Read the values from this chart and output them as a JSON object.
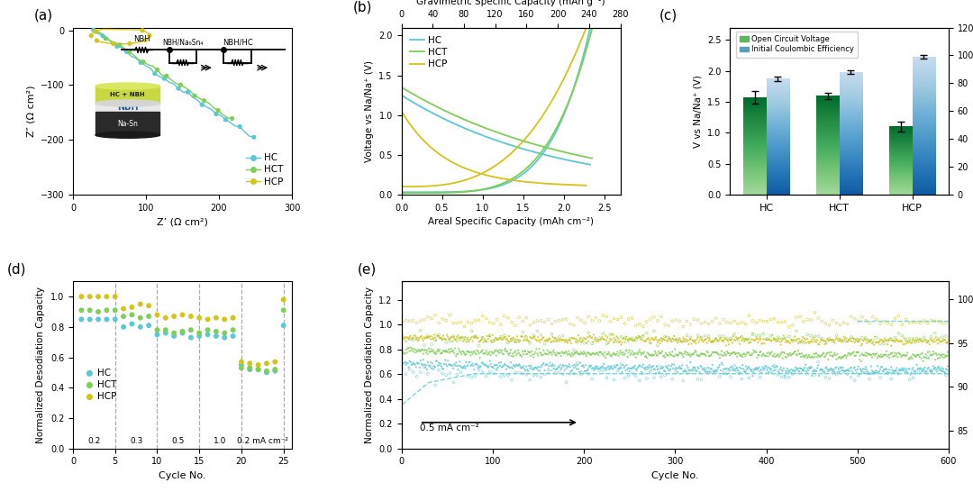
{
  "colors": {
    "HC": "#5bc8d5",
    "HCT": "#7ecf55",
    "HCP": "#d4c41a"
  },
  "panel_a": {
    "xlabel": "Z’ (Ω cm²)",
    "ylabel": "Z″ (Ω cm²)",
    "xlim": [
      0,
      300
    ],
    "ylim": [
      -300,
      0
    ],
    "yticks": [
      -300,
      -200,
      -100,
      0
    ],
    "xticks": [
      0,
      100,
      200,
      300
    ]
  },
  "panel_b": {
    "xlabel": "Areal Specific Capacity (mAh cm⁻²)",
    "ylabel": "Voltage vs Na/Na⁺ (V)",
    "xlabel2": "Gravimetric Specific Capacity (mAh g⁻¹)",
    "xlim": [
      0,
      2.7
    ],
    "ylim": [
      0,
      2.1
    ],
    "xlim2": [
      0,
      280
    ],
    "xticks": [
      0.0,
      0.5,
      1.0,
      1.5,
      2.0,
      2.5
    ],
    "xticks2": [
      0,
      40,
      80,
      120,
      160,
      200,
      240,
      280
    ]
  },
  "panel_c": {
    "ylabel_left": "V vs Na/Na⁺ (V)",
    "ylabel_right": "Initial Coulombic Efficiency (%)",
    "categories": [
      "HC",
      "HCT",
      "HCP"
    ],
    "ocv_values": [
      1.57,
      1.6,
      1.1
    ],
    "ocv_errors": [
      0.1,
      0.05,
      0.08
    ],
    "ice_values": [
      83,
      88,
      99
    ],
    "ice_errors": [
      1.5,
      1.5,
      1.5
    ],
    "ylim_left": [
      0,
      2.7
    ],
    "ylim_right": [
      0,
      120
    ],
    "yticks_left": [
      0.0,
      0.5,
      1.0,
      1.5,
      2.0,
      2.5
    ],
    "yticks_right": [
      0,
      20,
      40,
      60,
      80,
      100,
      120
    ],
    "bar_green": "#5cb85c",
    "bar_blue_top": "#4a90c4",
    "bar_blue_bot": "#aad4e8"
  },
  "panel_d": {
    "xlabel": "Cycle No.",
    "ylabel": "Normalized Desodiation Capacity",
    "xlim": [
      0,
      26
    ],
    "ylim": [
      0,
      1.1
    ],
    "vlines": [
      5,
      10,
      15,
      20,
      25
    ],
    "rate_labels": [
      "0.2",
      "0.3",
      "0.5",
      "1.0",
      "0.2 mA cm⁻²"
    ],
    "rate_x": [
      2.5,
      7.5,
      12.5,
      17.5,
      22.5
    ],
    "HC_vals": [
      0.85,
      0.85,
      0.85,
      0.85,
      0.85,
      0.8,
      0.82,
      0.8,
      0.81,
      0.75,
      0.76,
      0.74,
      0.76,
      0.73,
      0.74,
      0.75,
      0.74,
      0.73,
      0.74,
      0.55,
      0.52,
      0.52,
      0.5,
      0.51,
      0.81
    ],
    "HCT_vals": [
      0.91,
      0.91,
      0.9,
      0.91,
      0.91,
      0.87,
      0.88,
      0.86,
      0.87,
      0.78,
      0.78,
      0.76,
      0.77,
      0.78,
      0.76,
      0.78,
      0.77,
      0.76,
      0.78,
      0.53,
      0.53,
      0.52,
      0.51,
      0.52,
      0.91
    ],
    "HCP_vals": [
      1.0,
      1.0,
      1.0,
      1.0,
      1.0,
      0.92,
      0.93,
      0.95,
      0.94,
      0.88,
      0.86,
      0.87,
      0.88,
      0.87,
      0.86,
      0.85,
      0.86,
      0.85,
      0.86,
      0.57,
      0.56,
      0.55,
      0.56,
      0.57,
      0.98
    ]
  },
  "panel_e": {
    "xlabel": "Cycle No.",
    "ylabel": "Normalized Desodiation Capacity",
    "ylabel_right": "Efficiency (%)",
    "xlim": [
      0,
      600
    ],
    "ylim": [
      0.0,
      1.35
    ],
    "ylim_right": [
      83,
      102
    ],
    "yticks": [
      0.0,
      0.2,
      0.4,
      0.6,
      0.8,
      1.0,
      1.2
    ],
    "yticks_right": [
      85,
      90,
      95,
      100
    ],
    "annotation": "0.5 mA cm⁻²",
    "HC_cap_start": 0.7,
    "HC_cap_end": 0.63,
    "HCT_cap_start": 0.8,
    "HCT_cap_end": 0.75,
    "HCP_cap_start": 0.9,
    "HCP_cap_end": 0.87,
    "HC_eff": 91.5,
    "HCT_eff": 95.5,
    "HCP_eff": 97.5,
    "HC_eff_dashed_start": 0.52,
    "HC_eff_dashed_end": 1.22,
    "HCP_eff_dashed_start": 1.25
  }
}
